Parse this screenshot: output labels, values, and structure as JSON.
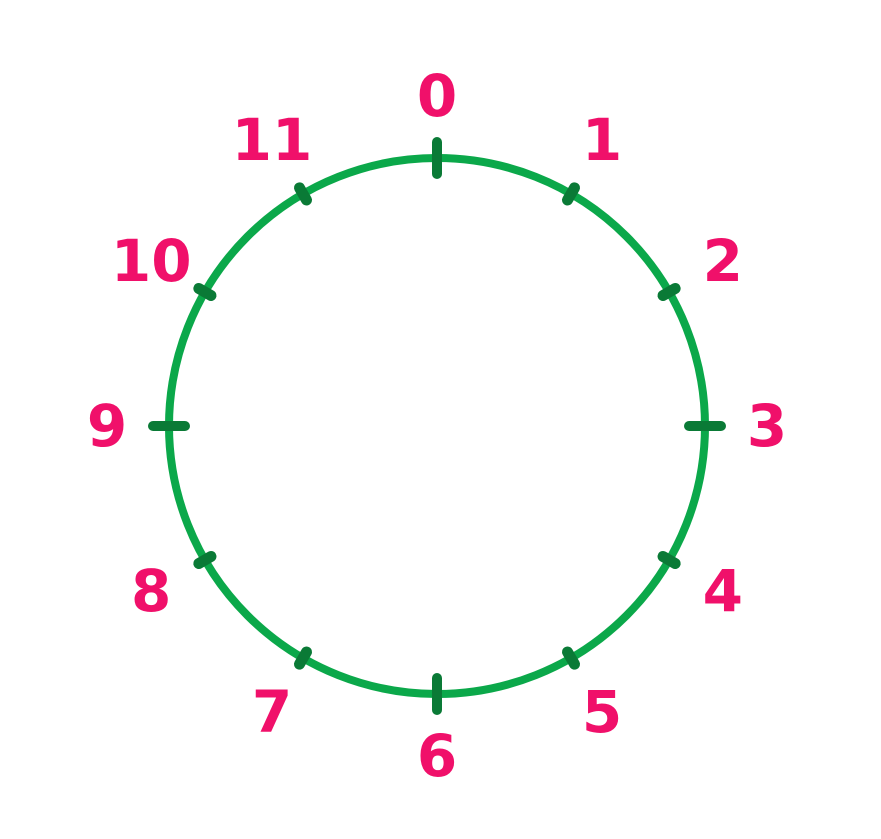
{
  "diagram": {
    "positions": [
      "0",
      "1",
      "2",
      "3",
      "4",
      "5",
      "6",
      "7",
      "8",
      "9",
      "10",
      "11"
    ]
  },
  "colors": {
    "circle": "#0BA84A",
    "ticks": "#0A7A36",
    "numbers": "#F0106A",
    "background": "#FFFFFF"
  }
}
